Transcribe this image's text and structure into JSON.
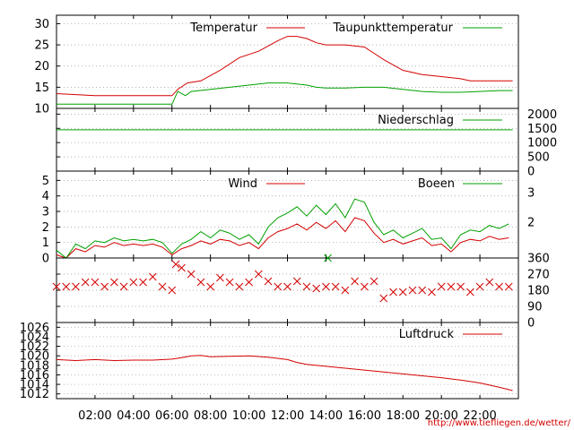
{
  "credit": "http://www.tiefliegen.de/wetter/",
  "colors": {
    "primary": "#d40000",
    "secondary": "#00a000",
    "grid": "#999999",
    "axis": "#000000"
  },
  "chart_data": [
    {
      "type": "line",
      "legend_position": "top",
      "grid": true,
      "ylim": [
        10,
        32
      ],
      "y_ticks": [
        10,
        15,
        20,
        25,
        30
      ],
      "series": [
        {
          "name": "Temperatur",
          "color": "#d40000",
          "x": [
            0,
            2,
            4,
            5,
            6,
            6.3,
            6.8,
            7.5,
            8.5,
            9.5,
            10.5,
            11.5,
            12,
            12.5,
            13,
            13.5,
            14,
            15,
            16,
            16.5,
            17,
            18,
            19,
            20,
            21,
            21.5,
            22,
            23,
            23.7
          ],
          "y": [
            13.5,
            13,
            13,
            13,
            13,
            14.5,
            16,
            16.5,
            19,
            22,
            23.5,
            26,
            27,
            27,
            26.5,
            25.5,
            25,
            25,
            24.5,
            23,
            21.5,
            19,
            18,
            17.5,
            17,
            16.5,
            16.5,
            16.5,
            16.5
          ]
        },
        {
          "name": "Taupunkttemperatur",
          "color": "#00a000",
          "x": [
            0,
            2,
            4,
            5,
            6,
            6.3,
            6.7,
            7,
            8,
            9,
            10,
            11,
            12,
            13,
            13.5,
            14,
            15,
            16,
            17,
            18,
            19,
            20,
            21,
            22,
            23,
            23.7
          ],
          "y": [
            11,
            11,
            11,
            11,
            11,
            14,
            13,
            14,
            14.5,
            15,
            15.5,
            16,
            16,
            15.5,
            15,
            14.8,
            14.8,
            15,
            15,
            14.5,
            14,
            13.8,
            13.8,
            14,
            14.2,
            14.2
          ]
        }
      ]
    },
    {
      "type": "line",
      "legend_position": "top",
      "grid": true,
      "ylim": [
        0,
        2200
      ],
      "y_ticks": [
        0,
        500,
        1000,
        1500,
        2000
      ],
      "series": [
        {
          "name": "Niederschlag",
          "color": "#00a000",
          "x": [
            0,
            23.7
          ],
          "y": [
            1450,
            1450
          ]
        }
      ]
    },
    {
      "type": "line",
      "legend_position": "top",
      "grid": true,
      "ylim": [
        0,
        5.6
      ],
      "y_ticks": [
        0,
        1,
        2,
        3,
        4,
        5
      ],
      "y2_ticks": [
        "2",
        "3"
      ],
      "series": [
        {
          "name": "Wind",
          "color": "#d40000",
          "x": [
            0,
            0.5,
            1,
            1.5,
            2,
            2.5,
            3,
            3.5,
            4,
            4.5,
            5,
            5.5,
            6,
            6.5,
            7,
            7.5,
            8,
            8.5,
            9,
            9.5,
            10,
            10.5,
            11,
            11.5,
            12,
            12.5,
            13,
            13.5,
            14,
            14.5,
            15,
            15.5,
            16,
            16.5,
            17,
            17.5,
            18,
            18.5,
            19,
            19.5,
            20,
            20.5,
            21,
            21.5,
            22,
            22.5,
            23,
            23.5
          ],
          "y": [
            0.2,
            0,
            0.6,
            0.4,
            0.8,
            0.7,
            1,
            0.8,
            0.9,
            0.8,
            0.9,
            0.7,
            0.2,
            0.6,
            0.8,
            1.1,
            0.9,
            1.2,
            1.1,
            0.8,
            1,
            0.6,
            1.3,
            1.7,
            1.9,
            2.2,
            1.8,
            2.3,
            1.9,
            2.4,
            1.7,
            2.6,
            2.4,
            1.6,
            1,
            1.2,
            0.9,
            1.1,
            1.3,
            0.8,
            0.9,
            0.4,
            1,
            1.2,
            1.1,
            1.4,
            1.2,
            1.3
          ]
        },
        {
          "name": "Boeen",
          "color": "#00a000",
          "x": [
            0,
            0.5,
            1,
            1.5,
            2,
            2.5,
            3,
            3.5,
            4,
            4.5,
            5,
            5.5,
            6,
            6.5,
            7,
            7.5,
            8,
            8.5,
            9,
            9.5,
            10,
            10.5,
            11,
            11.5,
            12,
            12.5,
            13,
            13.5,
            14,
            14.5,
            15,
            15.5,
            16,
            16.5,
            17,
            17.5,
            18,
            18.5,
            19,
            19.5,
            20,
            20.5,
            21,
            21.5,
            22,
            22.5,
            23,
            23.5
          ],
          "y": [
            0.5,
            0,
            0.9,
            0.6,
            1.1,
            1,
            1.3,
            1.1,
            1.2,
            1.1,
            1.2,
            1,
            0.3,
            0.9,
            1.2,
            1.7,
            1.3,
            1.8,
            1.6,
            1.2,
            1.5,
            0.9,
            2,
            2.6,
            2.9,
            3.3,
            2.7,
            3.4,
            2.8,
            3.5,
            2.6,
            3.8,
            3.6,
            2.3,
            1.5,
            1.8,
            1.3,
            1.6,
            1.9,
            1.2,
            1.3,
            0.6,
            1.5,
            1.8,
            1.7,
            2.1,
            1.9,
            2.2
          ]
        }
      ]
    },
    {
      "type": "scatter",
      "grid": true,
      "ylim": [
        0,
        360
      ],
      "y_ticks": [
        0,
        90,
        180,
        270,
        360
      ],
      "series": [
        {
          "name": "",
          "color": "#d40000",
          "x": [
            0,
            0.5,
            1,
            1.5,
            2,
            2.5,
            3,
            3.5,
            4,
            4.5,
            5,
            5.5,
            6,
            6.2,
            6.5,
            7,
            7.5,
            8,
            8.5,
            9,
            9.5,
            10,
            10.5,
            11,
            11.5,
            12,
            12.5,
            13,
            13.5,
            14,
            14.5,
            15,
            15.5,
            16,
            16.5,
            17,
            17.5,
            18,
            18.5,
            19,
            19.5,
            20,
            20.5,
            21,
            21.5,
            22,
            22.5,
            23,
            23.5
          ],
          "y": [
            200,
            200,
            200,
            225,
            225,
            200,
            225,
            200,
            225,
            225,
            255,
            200,
            180,
            325,
            305,
            270,
            225,
            200,
            250,
            225,
            200,
            225,
            270,
            230,
            200,
            200,
            230,
            200,
            190,
            200,
            200,
            180,
            230,
            200,
            230,
            135,
            170,
            170,
            180,
            180,
            170,
            200,
            200,
            200,
            170,
            200,
            225,
            200,
            200
          ]
        },
        {
          "name": "",
          "color": "#00a000",
          "x": [
            14.1
          ],
          "y": [
            360
          ]
        }
      ]
    },
    {
      "type": "line",
      "legend_position": "top",
      "grid": true,
      "ylim": [
        1011,
        1027
      ],
      "y_ticks": [
        1012,
        1014,
        1016,
        1018,
        1020,
        1022,
        1024,
        1026
      ],
      "x_ticks": [
        "02:00",
        "04:00",
        "06:00",
        "08:00",
        "10:00",
        "12:00",
        "14:00",
        "16:00",
        "18:00",
        "20:00",
        "22:00"
      ],
      "series": [
        {
          "name": "Luftdruck",
          "color": "#d40000",
          "x": [
            0,
            1,
            2,
            3,
            4,
            5,
            6,
            6.5,
            7,
            7.5,
            8,
            9,
            10,
            11,
            12,
            12.5,
            13,
            14,
            15,
            16,
            17,
            18,
            19,
            20,
            21,
            22,
            23,
            23.7
          ],
          "y": [
            1019.2,
            1019,
            1019.2,
            1019,
            1019.1,
            1019.1,
            1019.3,
            1019.6,
            1020,
            1020.1,
            1019.8,
            1019.9,
            1020,
            1019.7,
            1019.2,
            1018.6,
            1018.2,
            1017.8,
            1017.4,
            1017,
            1016.6,
            1016.2,
            1015.8,
            1015.4,
            1014.9,
            1014.3,
            1013.4,
            1012.7
          ]
        }
      ]
    }
  ]
}
